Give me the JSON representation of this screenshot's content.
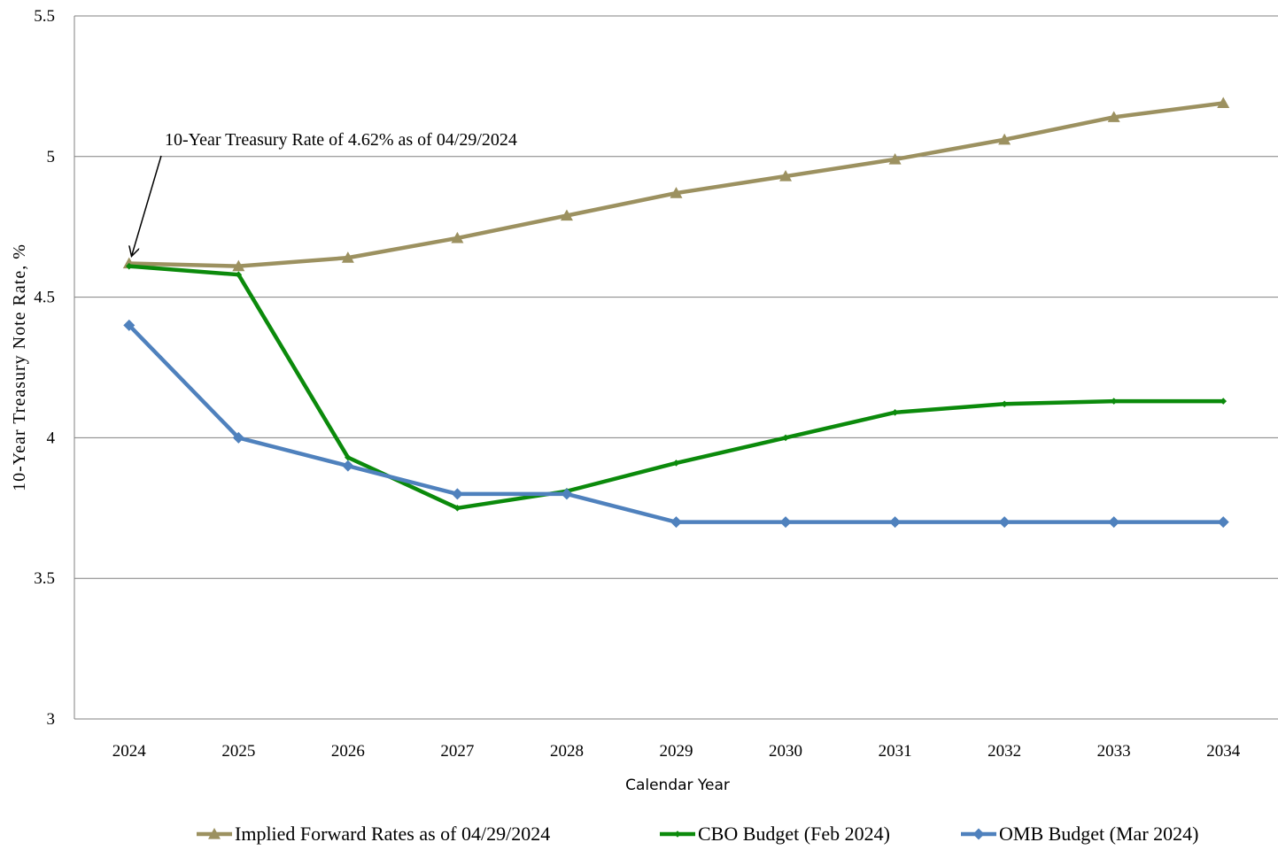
{
  "chart_data": {
    "type": "line",
    "title": "",
    "xlabel": "Calendar Year",
    "ylabel": "10-Year Treasury Note Rate, %",
    "categories": [
      "2024",
      "2025",
      "2026",
      "2027",
      "2028",
      "2029",
      "2030",
      "2031",
      "2032",
      "2033",
      "2034"
    ],
    "y_ticks": [
      "3",
      "3.5",
      "4",
      "4.5",
      "5",
      "5.5"
    ],
    "ylim": [
      3,
      5.5
    ],
    "grid": "horizontal",
    "legend_position": "bottom",
    "series": [
      {
        "name": "Implied Forward Rates as of 04/29/2024",
        "color": "#9c9160",
        "marker": "triangle",
        "values": [
          4.62,
          4.61,
          4.64,
          4.71,
          4.79,
          4.87,
          4.93,
          4.99,
          5.06,
          5.14,
          5.19
        ]
      },
      {
        "name": "CBO Budget (Feb 2024)",
        "color": "#0b8a0b",
        "marker": "small-diamond",
        "values": [
          4.61,
          4.58,
          3.93,
          3.75,
          3.81,
          3.91,
          4.0,
          4.09,
          4.12,
          4.13,
          4.13
        ]
      },
      {
        "name": "OMB Budget (Mar 2024)",
        "color": "#4f81bd",
        "marker": "diamond",
        "values": [
          4.4,
          4.0,
          3.9,
          3.8,
          3.8,
          3.7,
          3.7,
          3.7,
          3.7,
          3.7,
          3.7
        ]
      }
    ],
    "annotation": {
      "text": "10-Year Treasury  Rate of 4.62% as of 04/29/2024",
      "target_category": "2024",
      "target_value": 4.62
    }
  }
}
